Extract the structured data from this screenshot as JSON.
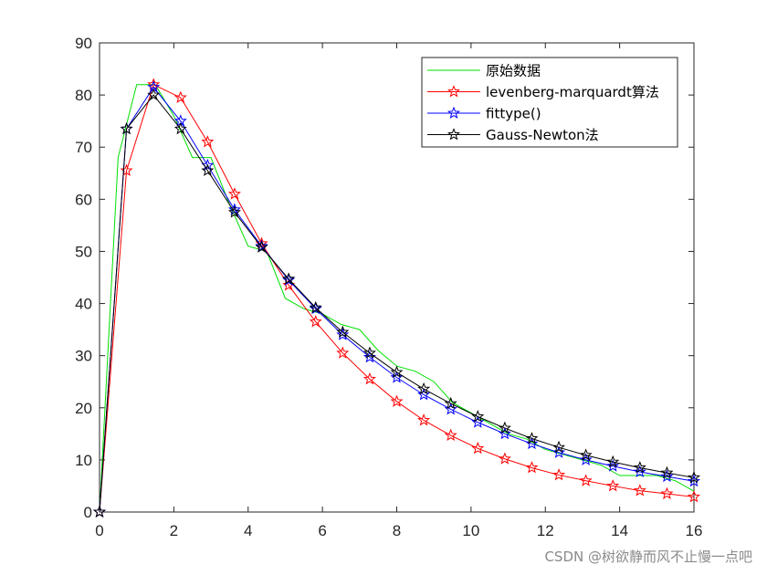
{
  "chart_data": {
    "type": "line",
    "xlim": [
      0,
      16
    ],
    "ylim": [
      0,
      90
    ],
    "xticks": [
      0,
      2,
      4,
      6,
      8,
      10,
      12,
      14,
      16
    ],
    "yticks": [
      0,
      10,
      20,
      30,
      40,
      50,
      60,
      70,
      80,
      90
    ],
    "grid": false,
    "legend_position": "top-right",
    "series": [
      {
        "name": "原始数据",
        "color": "#00e000",
        "marker": "none",
        "x": [
          0,
          0.5,
          1,
          1.5,
          2,
          2.5,
          3,
          3.5,
          4,
          4.5,
          5,
          5.5,
          6,
          6.5,
          7,
          7.5,
          8,
          8.5,
          9,
          9.5,
          10,
          10.5,
          11,
          11.5,
          12,
          12.5,
          13,
          13.5,
          14,
          14.5,
          15,
          15.5,
          16
        ],
        "y": [
          0,
          68,
          82,
          82,
          76,
          68,
          68,
          59,
          51,
          50,
          41,
          39,
          38,
          36,
          35,
          31,
          28,
          27,
          25,
          21,
          19,
          17,
          15,
          14,
          12,
          11,
          10,
          9,
          7,
          7,
          7,
          6,
          4
        ]
      },
      {
        "name": "levenberg-marquardt算法",
        "color": "#ff0000",
        "marker": "star",
        "x": [
          0,
          0.727,
          1.455,
          2.182,
          2.909,
          3.636,
          4.364,
          5.091,
          5.818,
          6.545,
          7.273,
          8.0,
          8.727,
          9.455,
          10.182,
          10.909,
          11.636,
          12.364,
          13.091,
          13.818,
          14.545,
          15.273,
          16.0
        ],
        "y": [
          0,
          65.5,
          82,
          79.5,
          71,
          61,
          51.5,
          43.5,
          36.5,
          30.5,
          25.5,
          21.2,
          17.6,
          14.7,
          12.2,
          10.2,
          8.5,
          7.1,
          6.0,
          5.0,
          4.1,
          3.5,
          2.9
        ]
      },
      {
        "name": "fittype()",
        "color": "#0000ff",
        "marker": "star",
        "x": [
          0,
          0.727,
          1.455,
          2.182,
          2.909,
          3.636,
          4.364,
          5.091,
          5.818,
          6.545,
          7.273,
          8.0,
          8.727,
          9.455,
          10.182,
          10.909,
          11.636,
          12.364,
          13.091,
          13.818,
          14.545,
          15.273,
          16.0
        ],
        "y": [
          0,
          73.5,
          81.5,
          75,
          66.5,
          58,
          51,
          44.5,
          39,
          34,
          29.7,
          25.8,
          22.5,
          19.7,
          17.2,
          15.0,
          13.1,
          11.4,
          10.0,
          8.8,
          7.7,
          6.8,
          5.9
        ]
      },
      {
        "name": "Gauss-Newton法",
        "color": "#000000",
        "marker": "star",
        "x": [
          0,
          0.727,
          1.455,
          2.182,
          2.909,
          3.636,
          4.364,
          5.091,
          5.818,
          6.545,
          7.273,
          8.0,
          8.727,
          9.455,
          10.182,
          10.909,
          11.636,
          12.364,
          13.091,
          13.818,
          14.545,
          15.273,
          16.0
        ],
        "y": [
          0,
          73.5,
          80,
          73.5,
          65.5,
          57.5,
          50.8,
          44.7,
          39.2,
          34.5,
          30.5,
          26.8,
          23.6,
          20.8,
          18.3,
          16.1,
          14.1,
          12.4,
          10.9,
          9.6,
          8.5,
          7.5,
          6.6
        ]
      }
    ]
  },
  "watermark": "CSDN @树欲静而风不止慢一点吧"
}
